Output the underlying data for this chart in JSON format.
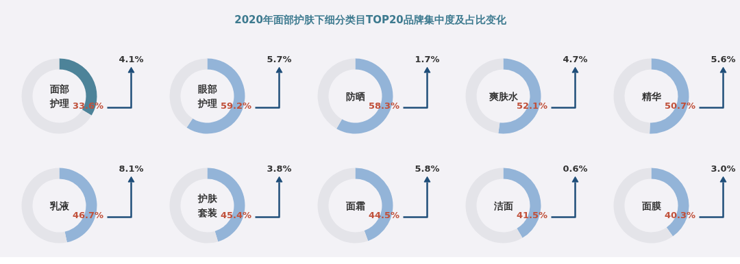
{
  "chart_data": [
    {
      "type": "other",
      "title": "2020年面部护肤下细分类目TOP20品牌集中度及占比变化"
    },
    {
      "type": "donut",
      "title": "面部护理",
      "categories": [
        null,
        null
      ],
      "values": [
        33.6,
        66.4
      ],
      "colors": [
        "#4d8399",
        "#e4e4e9"
      ],
      "value_labels": [
        "33.6%",
        null
      ],
      "annotations": [
        "4.1%"
      ]
    },
    {
      "type": "donut",
      "title": "眼部护理",
      "categories": [
        null,
        null
      ],
      "values": [
        59.2,
        40.8
      ],
      "colors": [
        "#93b4d8",
        "#e4e4e9"
      ],
      "value_labels": [
        "59.2%",
        null
      ],
      "annotations": [
        "5.7%"
      ]
    },
    {
      "type": "donut",
      "title": "防晒",
      "categories": [
        null,
        null
      ],
      "values": [
        58.3,
        41.7
      ],
      "colors": [
        "#93b4d8",
        "#e4e4e9"
      ],
      "value_labels": [
        "58.3%",
        null
      ],
      "annotations": [
        "1.7%"
      ]
    },
    {
      "type": "donut",
      "title": "爽肤水",
      "categories": [
        null,
        null
      ],
      "values": [
        52.1,
        47.9
      ],
      "colors": [
        "#93b4d8",
        "#e4e4e9"
      ],
      "value_labels": [
        "52.1%",
        null
      ],
      "annotations": [
        "4.7%"
      ]
    },
    {
      "type": "donut",
      "title": "精华",
      "categories": [
        null,
        null
      ],
      "values": [
        50.7,
        49.3
      ],
      "colors": [
        "#93b4d8",
        "#e4e4e9"
      ],
      "value_labels": [
        "50.7%",
        null
      ],
      "annotations": [
        "5.6%"
      ]
    },
    {
      "type": "donut",
      "title": "乳液",
      "categories": [
        null,
        null
      ],
      "values": [
        46.7,
        53.3
      ],
      "colors": [
        "#93b4d8",
        "#e4e4e9"
      ],
      "value_labels": [
        "46.7%",
        null
      ],
      "annotations": [
        "8.1%"
      ]
    },
    {
      "type": "donut",
      "title": "护肤套装",
      "categories": [
        null,
        null
      ],
      "values": [
        45.4,
        54.6
      ],
      "colors": [
        "#93b4d8",
        "#e4e4e9"
      ],
      "value_labels": [
        "45.4%",
        null
      ],
      "annotations": [
        "3.8%"
      ]
    },
    {
      "type": "donut",
      "title": "面霜",
      "categories": [
        null,
        null
      ],
      "values": [
        44.5,
        55.5
      ],
      "colors": [
        "#93b4d8",
        "#e4e4e9"
      ],
      "value_labels": [
        "44.5%",
        null
      ],
      "annotations": [
        "5.8%"
      ]
    },
    {
      "type": "donut",
      "title": "洁面",
      "categories": [
        null,
        null
      ],
      "values": [
        41.5,
        58.5
      ],
      "colors": [
        "#93b4d8",
        "#e4e4e9"
      ],
      "value_labels": [
        "41.5%",
        null
      ],
      "annotations": [
        "0.6%"
      ]
    },
    {
      "type": "donut",
      "title": "面膜",
      "categories": [
        null,
        null
      ],
      "values": [
        40.3,
        59.7
      ],
      "colors": [
        "#93b4d8",
        "#e4e4e9"
      ],
      "value_labels": [
        "40.3%",
        null
      ],
      "annotations": [
        "3.0%"
      ]
    }
  ]
}
